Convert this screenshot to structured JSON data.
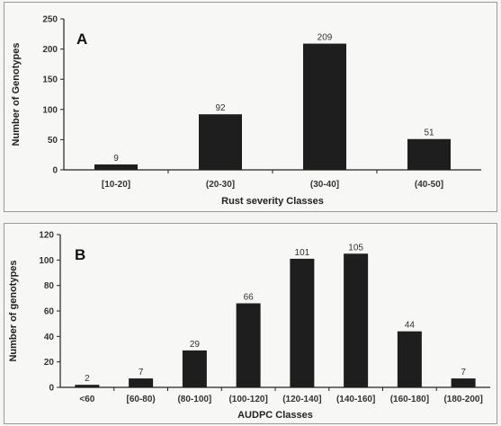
{
  "chart_data": [
    {
      "type": "bar",
      "panel_label": "A",
      "categories": [
        "[10-20]",
        "(20-30]",
        "(30-40]",
        "(40-50]"
      ],
      "values": [
        9,
        92,
        209,
        51
      ],
      "xlabel": "Rust severity Classes",
      "ylabel": "Number of Genotypes",
      "ylim": [
        0,
        250
      ],
      "yticks": [
        0,
        50,
        100,
        150,
        200,
        250
      ],
      "bar_color": "#1e1e1e",
      "grid": false,
      "legend": false
    },
    {
      "type": "bar",
      "panel_label": "B",
      "categories": [
        "<60",
        "[60-80)",
        "(80-100]",
        "(100-120]",
        "(120-140]",
        "(140-160]",
        "(160-180]",
        "(180-200]"
      ],
      "values": [
        2,
        7,
        29,
        66,
        101,
        105,
        44,
        7
      ],
      "xlabel": "AUDPC Classes",
      "ylabel": "Number of genotypes",
      "ylim": [
        0,
        120
      ],
      "yticks": [
        0,
        20,
        40,
        60,
        80,
        100,
        120
      ],
      "bar_color": "#1e1e1e",
      "grid": false,
      "legend": false
    }
  ]
}
